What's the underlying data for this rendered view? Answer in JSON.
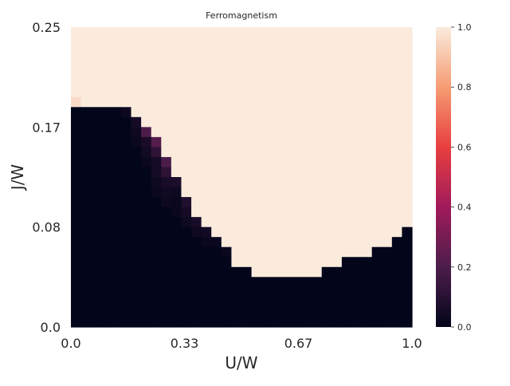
{
  "chart_data": {
    "type": "heatmap",
    "title": "Ferromagnetism",
    "xlabel": "U/W",
    "ylabel": "J/W",
    "xlim": [
      0.0,
      1.0
    ],
    "ylim": [
      0.0,
      0.25
    ],
    "x_tick_values": [
      0.0,
      0.333,
      0.667,
      1.0
    ],
    "x_tick_labels": [
      "0.0",
      "0.33",
      "0.67",
      "1.0"
    ],
    "y_tick_values": [
      0.0,
      0.0833,
      0.1667,
      0.25
    ],
    "y_tick_labels": [
      "0.0",
      "0.08",
      "0.17",
      "0.25"
    ],
    "grid": false,
    "colorbar": {
      "position": "right",
      "range": [
        0.0,
        1.0
      ],
      "tick_values": [
        0.0,
        0.2,
        0.4,
        0.6,
        0.8,
        1.0
      ],
      "tick_labels": [
        "0.0",
        "0.2",
        "0.4",
        "0.6",
        "0.8",
        "1.0"
      ],
      "colormap": "rocket",
      "stops": [
        "#03051a",
        "#4c1d4b",
        "#a11a5b",
        "#e83f3f",
        "#f69c73",
        "#faebdd"
      ]
    },
    "grid_size": {
      "columns": 34,
      "rows": 30
    },
    "ferromagnetic_boundary_row_by_column": [
      8,
      8,
      8,
      8,
      8,
      9,
      10,
      11,
      12,
      14,
      16,
      18,
      20,
      21,
      22,
      23,
      24,
      24,
      25,
      25,
      25,
      25,
      25,
      25,
      25,
      24,
      24,
      23,
      23,
      23,
      22,
      22,
      21,
      20
    ],
    "partial_values": [
      {
        "col": 0,
        "row": 7,
        "value": 0.96
      },
      {
        "col": 5,
        "row": 8,
        "value": 0.03
      },
      {
        "col": 6,
        "row": 9,
        "value": 0.05
      },
      {
        "col": 6,
        "row": 10,
        "value": 0.03
      },
      {
        "col": 6,
        "row": 11,
        "value": 0.02
      },
      {
        "col": 7,
        "row": 10,
        "value": 0.2
      },
      {
        "col": 7,
        "row": 11,
        "value": 0.06
      },
      {
        "col": 7,
        "row": 12,
        "value": 0.04
      },
      {
        "col": 7,
        "row": 13,
        "value": 0.02
      },
      {
        "col": 8,
        "row": 11,
        "value": 0.22
      },
      {
        "col": 8,
        "row": 12,
        "value": 0.12
      },
      {
        "col": 8,
        "row": 13,
        "value": 0.05
      },
      {
        "col": 8,
        "row": 14,
        "value": 0.05
      },
      {
        "col": 8,
        "row": 15,
        "value": 0.03
      },
      {
        "col": 8,
        "row": 16,
        "value": 0.02
      },
      {
        "col": 9,
        "row": 13,
        "value": 0.2
      },
      {
        "col": 9,
        "row": 14,
        "value": 0.12
      },
      {
        "col": 9,
        "row": 15,
        "value": 0.06
      },
      {
        "col": 9,
        "row": 16,
        "value": 0.04
      },
      {
        "col": 9,
        "row": 17,
        "value": 0.03
      },
      {
        "col": 10,
        "row": 15,
        "value": 0.07
      },
      {
        "col": 10,
        "row": 16,
        "value": 0.03
      },
      {
        "col": 10,
        "row": 17,
        "value": 0.02
      },
      {
        "col": 10,
        "row": 18,
        "value": 0.02
      },
      {
        "col": 11,
        "row": 17,
        "value": 0.08
      },
      {
        "col": 11,
        "row": 18,
        "value": 0.05
      },
      {
        "col": 11,
        "row": 19,
        "value": 0.03
      },
      {
        "col": 12,
        "row": 19,
        "value": 0.06
      },
      {
        "col": 12,
        "row": 20,
        "value": 0.03
      },
      {
        "col": 13,
        "row": 20,
        "value": 0.04
      },
      {
        "col": 13,
        "row": 21,
        "value": 0.02
      },
      {
        "col": 14,
        "row": 21,
        "value": 0.02
      },
      {
        "col": 15,
        "row": 22,
        "value": 0.02
      }
    ]
  }
}
